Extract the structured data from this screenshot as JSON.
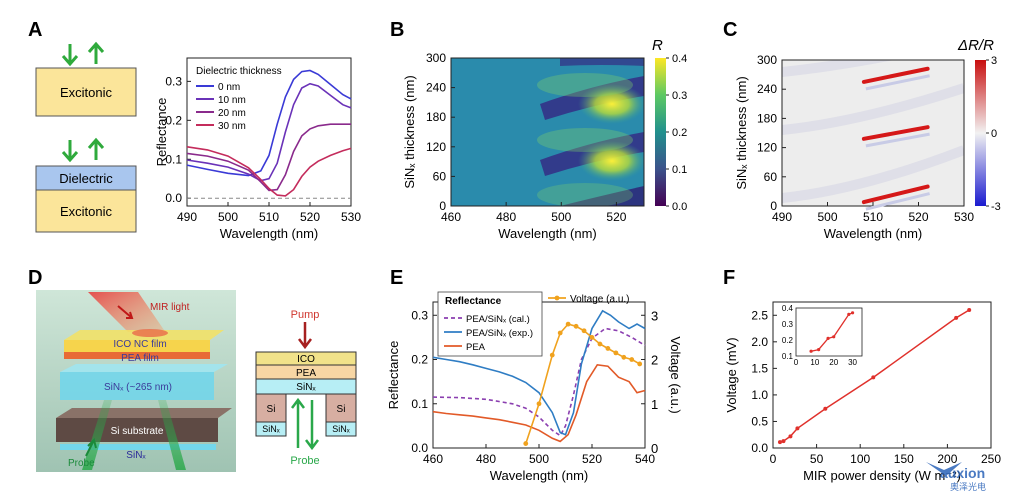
{
  "panels": {
    "A": {
      "letter": "A",
      "stack1": {
        "layer": "Excitonic"
      },
      "stack2": {
        "top_layer": "Dielectric",
        "bottom_layer": "Excitonic"
      },
      "colors": {
        "excitonic": "#fbe59a",
        "dielectric": "#a9c6ee",
        "arrow": "#2faa3c"
      }
    },
    "B": {
      "letter": "B",
      "colorbar_label": "R",
      "colorbar_ticks": [
        "0.0",
        "0.1",
        "0.2",
        "0.3",
        "0.4"
      ]
    },
    "C": {
      "letter": "C",
      "colorbar_label": "ΔR/R",
      "colorbar_ticks": [
        "-3",
        "0",
        "3"
      ]
    },
    "D": {
      "letter": "D",
      "labels": {
        "mir": "MIR light",
        "ico": "ICO NC film",
        "pea": "PEA film",
        "sinx_layer": "SiNₓ (~265 nm)",
        "substrate": "Si substrate",
        "sinx_bottom": "SiNₓ",
        "probe": "Probe"
      },
      "schematic": {
        "pump": "Pump",
        "ico": "ICO",
        "pea": "PEA",
        "sinx": "SiNₓ",
        "si_left": "Si",
        "si_right": "Si",
        "sinx_left": "SiNₓ",
        "sinx_right": "SiNₓ",
        "probe": "Probe"
      }
    },
    "E": {
      "letter": "E",
      "legend_title": "Reflectance"
    },
    "F": {
      "letter": "F"
    }
  },
  "watermark": {
    "text": "auxion",
    "subtext": "奥泽光电"
  },
  "chart_data": [
    {
      "id": "A",
      "type": "line",
      "title": "",
      "xlabel": "Wavelength (nm)",
      "ylabel": "Reflectance",
      "xlim": [
        490,
        530
      ],
      "ylim": [
        -0.02,
        0.36
      ],
      "xticks": [
        490,
        500,
        510,
        520,
        530
      ],
      "yticks": [
        0.0,
        0.1,
        0.2,
        0.3
      ],
      "ytick_labels": [
        "0.0",
        "0.1",
        "0.2",
        "0.3"
      ],
      "legend_title": "Dielectric thickness",
      "legend_position": "top-left",
      "baseline": 0.0,
      "series": [
        {
          "name": "0 nm",
          "color": "#3a3ad6",
          "x": [
            490,
            495,
            500,
            505,
            508,
            510,
            512,
            514,
            516,
            518,
            520,
            522,
            525,
            528,
            530
          ],
          "y": [
            0.085,
            0.074,
            0.064,
            0.058,
            0.07,
            0.11,
            0.19,
            0.26,
            0.305,
            0.325,
            0.328,
            0.318,
            0.292,
            0.266,
            0.255
          ]
        },
        {
          "name": "10 nm",
          "color": "#6a32b8",
          "x": [
            490,
            495,
            500,
            505,
            508,
            510,
            512,
            514,
            516,
            518,
            520,
            522,
            525,
            528,
            530
          ],
          "y": [
            0.098,
            0.09,
            0.08,
            0.062,
            0.045,
            0.05,
            0.09,
            0.17,
            0.24,
            0.283,
            0.294,
            0.288,
            0.264,
            0.24,
            0.232
          ]
        },
        {
          "name": "20 nm",
          "color": "#8a2a8c",
          "x": [
            490,
            495,
            500,
            505,
            508,
            510,
            512,
            514,
            516,
            518,
            520,
            522,
            525,
            528,
            530
          ],
          "y": [
            0.115,
            0.108,
            0.095,
            0.072,
            0.042,
            0.02,
            0.022,
            0.06,
            0.12,
            0.16,
            0.178,
            0.186,
            0.19,
            0.19,
            0.19
          ]
        },
        {
          "name": "30 nm",
          "color": "#c42c5c",
          "x": [
            490,
            495,
            500,
            505,
            508,
            510,
            512,
            514,
            516,
            518,
            520,
            522,
            525,
            528,
            530
          ],
          "y": [
            0.132,
            0.124,
            0.108,
            0.078,
            0.048,
            0.025,
            0.008,
            0.006,
            0.022,
            0.056,
            0.08,
            0.095,
            0.11,
            0.122,
            0.128
          ]
        }
      ]
    },
    {
      "id": "B",
      "type": "heatmap",
      "title": "",
      "xlabel": "Wavelength (nm)",
      "ylabel": "SiNₓ thickness (nm)",
      "xlim": [
        460,
        530
      ],
      "ylim": [
        0,
        300
      ],
      "xticks": [
        460,
        480,
        500,
        520
      ],
      "yticks": [
        0,
        60,
        120,
        180,
        240,
        300
      ],
      "colorbar_range": [
        0.0,
        0.4
      ],
      "colormap": "viridis",
      "periodic_bands_center_nm": [
        90,
        200
      ]
    },
    {
      "id": "C",
      "type": "heatmap",
      "title": "",
      "xlabel": "Wavelength (nm)",
      "ylabel": "SiNₓ thickness (nm)",
      "xlim": [
        490,
        530
      ],
      "ylim": [
        0,
        300
      ],
      "xticks": [
        490,
        500,
        510,
        520,
        530
      ],
      "yticks": [
        0,
        60,
        120,
        180,
        240,
        300
      ],
      "colorbar_range": [
        -3,
        3
      ],
      "colormap": "blue-white-red",
      "diagonal_features": [
        {
          "x": [
            508,
            522
          ],
          "y": [
            8,
            40
          ]
        },
        {
          "x": [
            508,
            522
          ],
          "y": [
            138,
            162
          ]
        },
        {
          "x": [
            508,
            522
          ],
          "y": [
            255,
            282
          ]
        }
      ]
    },
    {
      "id": "E",
      "type": "line",
      "title": "",
      "xlabel": "Wavelength (nm)",
      "ylabel": "Reflectance",
      "y2label": "Voltage (a.u.)",
      "xlim": [
        460,
        540
      ],
      "ylim": [
        0.0,
        0.33
      ],
      "y2lim": [
        0,
        3.3
      ],
      "xticks": [
        460,
        480,
        500,
        520,
        540
      ],
      "yticks": [
        0.0,
        0.1,
        0.2,
        0.3
      ],
      "ytick_labels": [
        "0.0",
        "0.1",
        "0.2",
        "0.3"
      ],
      "y2ticks": [
        0,
        1,
        2,
        3
      ],
      "legend_position": "top-left",
      "series": [
        {
          "name": "PEA/SiNₓ (cal.)",
          "color": "#8b3fb0",
          "dash": true,
          "x": [
            460,
            470,
            480,
            490,
            495,
            500,
            505,
            508,
            510,
            513,
            516,
            520,
            525,
            530,
            535,
            540
          ],
          "y": [
            0.115,
            0.114,
            0.11,
            0.1,
            0.09,
            0.07,
            0.04,
            0.028,
            0.05,
            0.12,
            0.2,
            0.248,
            0.27,
            0.265,
            0.25,
            0.232
          ]
        },
        {
          "name": "PEA/SiNₓ (exp.)",
          "color": "#2f7dc4",
          "x": [
            460,
            465,
            470,
            475,
            480,
            485,
            490,
            495,
            500,
            505,
            508,
            510,
            513,
            516,
            520,
            524,
            527,
            530,
            534,
            537,
            540
          ],
          "y": [
            0.205,
            0.2,
            0.195,
            0.188,
            0.18,
            0.172,
            0.162,
            0.148,
            0.125,
            0.08,
            0.035,
            0.03,
            0.08,
            0.19,
            0.27,
            0.31,
            0.3,
            0.285,
            0.27,
            0.28,
            0.27
          ]
        },
        {
          "name": "PEA",
          "color": "#e25a28",
          "x": [
            460,
            465,
            470,
            475,
            480,
            485,
            490,
            495,
            500,
            505,
            508,
            511,
            514,
            518,
            522,
            526,
            530,
            534,
            537,
            540
          ],
          "y": [
            0.082,
            0.078,
            0.075,
            0.072,
            0.068,
            0.064,
            0.058,
            0.052,
            0.04,
            0.022,
            0.015,
            0.03,
            0.075,
            0.15,
            0.188,
            0.185,
            0.16,
            0.15,
            0.125,
            0.13
          ]
        },
        {
          "name": "Voltage (a.u.)",
          "color": "#f0a21e",
          "marker": true,
          "axis": "y2",
          "x": [
            495,
            500,
            505,
            508,
            511,
            514,
            517,
            520,
            523,
            526,
            529,
            532,
            535,
            538
          ],
          "y": [
            0.1,
            1.0,
            2.1,
            2.6,
            2.8,
            2.75,
            2.65,
            2.5,
            2.35,
            2.25,
            2.15,
            2.05,
            2.0,
            1.9
          ]
        }
      ]
    },
    {
      "id": "F",
      "type": "scatter",
      "title": "",
      "xlabel": "MIR power density (W m⁻²)",
      "ylabel": "Voltage (mV)",
      "xlim": [
        0,
        250
      ],
      "ylim": [
        0,
        2.75
      ],
      "xticks": [
        0,
        50,
        100,
        150,
        200,
        250
      ],
      "yticks": [
        0.0,
        0.5,
        1.0,
        1.5,
        2.0,
        2.5
      ],
      "ytick_labels": [
        "0.0",
        "0.5",
        "1.0",
        "1.5",
        "2.0",
        "2.5"
      ],
      "color": "#e0312c",
      "x": [
        8,
        12,
        20,
        28,
        60,
        115,
        210,
        225
      ],
      "y": [
        0.11,
        0.13,
        0.22,
        0.37,
        0.74,
        1.33,
        2.45,
        2.6
      ],
      "inset": {
        "xlim": [
          0,
          35
        ],
        "ylim": [
          0.1,
          0.4
        ],
        "xticks": [
          0,
          10,
          20,
          30
        ],
        "yticks": [
          0.1,
          0.2,
          0.3,
          0.4
        ],
        "ytick_labels": [
          "0.1",
          "0.2",
          "0.3",
          "0.4"
        ],
        "x": [
          8,
          12,
          17,
          20,
          28,
          30
        ],
        "y": [
          0.13,
          0.14,
          0.21,
          0.22,
          0.36,
          0.37
        ]
      }
    }
  ]
}
